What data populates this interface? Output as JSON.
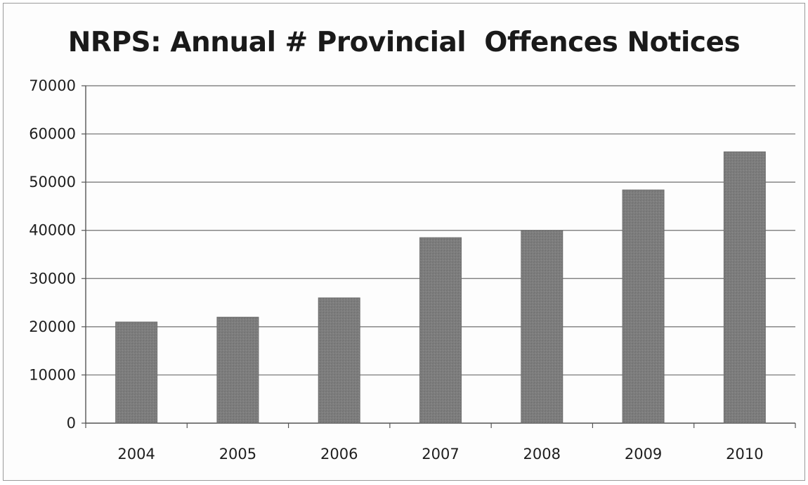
{
  "chart_data": {
    "type": "bar",
    "title": "NRPS: Annual # Provincial  Offences Notices",
    "categories": [
      "2004",
      "2005",
      "2006",
      "2007",
      "2008",
      "2009",
      "2010"
    ],
    "values": [
      21000,
      22000,
      26000,
      38500,
      40000,
      48400,
      56300
    ],
    "y_ticks": [
      "0",
      "10000",
      "20000",
      "30000",
      "40000",
      "50000",
      "60000",
      "70000"
    ],
    "ylim": [
      0,
      70000
    ],
    "xlabel": "",
    "ylabel": "",
    "grid": true,
    "bar_color": "#7d7d7d",
    "grid_color": "#6f6f6f"
  }
}
